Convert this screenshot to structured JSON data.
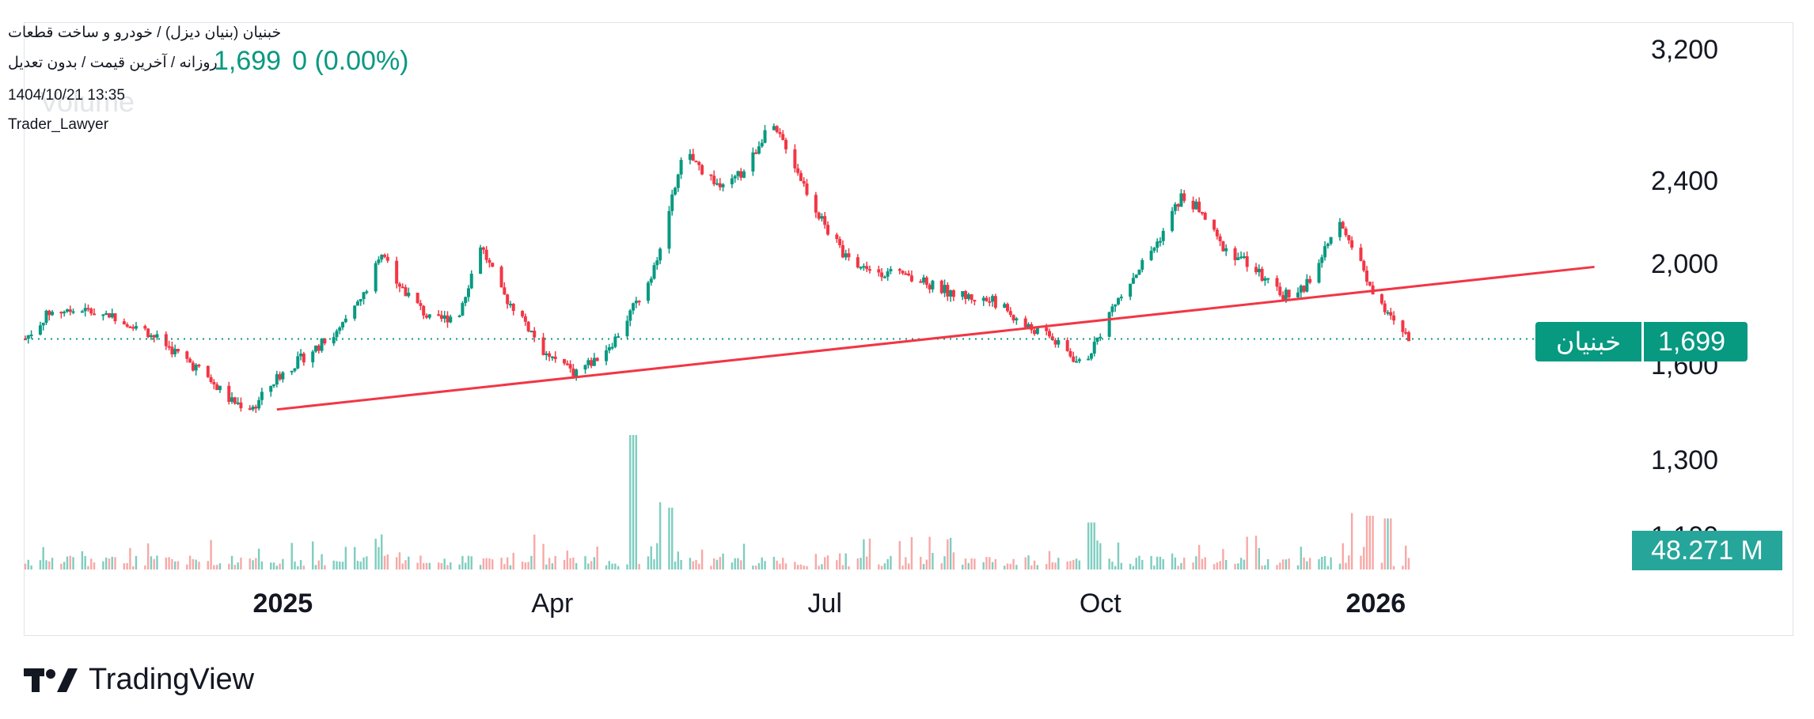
{
  "header": {
    "title": "خبنیان (بنیان دیزل) / خودرو و ساخت قطعات",
    "timeframe": "روزانه / آخرین قیمت / بدون تعدیل",
    "price": "1,699",
    "change": "0 (0.00%)",
    "date": "1404/10/21 13:35",
    "author": "Trader_Lawyer",
    "volume_label": "Volume"
  },
  "price_label": {
    "symbol": "خبنیان",
    "value": "1,699"
  },
  "volume_label": {
    "value": "48.271 M"
  },
  "brand": {
    "name": "TradingView"
  },
  "colors": {
    "up": "#089981",
    "down": "#f23645",
    "vol_up": "#7fcdc0",
    "vol_down": "#f7a9a7",
    "trendline": "#f23645"
  },
  "chart_data": {
    "type": "candlestick",
    "scale": "log",
    "ylim": [
      1100,
      3250
    ],
    "yticks": [
      "3,200",
      "2,400",
      "2,000",
      "1,600",
      "1,300",
      "1,100"
    ],
    "xticks": [
      {
        "label": "2025",
        "date": "2025-01-01",
        "bold": true
      },
      {
        "label": "Apr",
        "date": "2025-04-01",
        "bold": false
      },
      {
        "label": "Jul",
        "date": "2025-07-01",
        "bold": false
      },
      {
        "label": "Oct",
        "date": "2025-10-01",
        "bold": false
      },
      {
        "label": "2026",
        "date": "2026-01-01",
        "bold": true
      }
    ],
    "last_price": 1699,
    "last_volume": "48.271 M",
    "price_path": [
      [
        "2024-10-07",
        1700
      ],
      [
        "2024-10-15",
        1800
      ],
      [
        "2024-10-25",
        1810
      ],
      [
        "2024-11-05",
        1790
      ],
      [
        "2024-11-15",
        1740
      ],
      [
        "2024-11-25",
        1660
      ],
      [
        "2024-12-05",
        1580
      ],
      [
        "2024-12-15",
        1480
      ],
      [
        "2024-12-22",
        1460
      ],
      [
        "2024-12-30",
        1560
      ],
      [
        "2025-01-10",
        1650
      ],
      [
        "2025-01-20",
        1730
      ],
      [
        "2025-01-28",
        1870
      ],
      [
        "2025-02-03",
        2050
      ],
      [
        "2025-02-10",
        1900
      ],
      [
        "2025-02-20",
        1760
      ],
      [
        "2025-03-01",
        1800
      ],
      [
        "2025-03-08",
        2090
      ],
      [
        "2025-03-15",
        1880
      ],
      [
        "2025-03-22",
        1780
      ],
      [
        "2025-03-30",
        1640
      ],
      [
        "2025-04-08",
        1580
      ],
      [
        "2025-04-15",
        1620
      ],
      [
        "2025-04-22",
        1700
      ],
      [
        "2025-04-30",
        1860
      ],
      [
        "2025-05-05",
        1990
      ],
      [
        "2025-05-10",
        2250
      ],
      [
        "2025-05-15",
        2560
      ],
      [
        "2025-05-20",
        2480
      ],
      [
        "2025-05-28",
        2360
      ],
      [
        "2025-06-05",
        2470
      ],
      [
        "2025-06-12",
        2720
      ],
      [
        "2025-06-18",
        2600
      ],
      [
        "2025-06-25",
        2350
      ],
      [
        "2025-07-02",
        2150
      ],
      [
        "2025-07-10",
        2000
      ],
      [
        "2025-07-20",
        1970
      ],
      [
        "2025-08-01",
        1930
      ],
      [
        "2025-08-15",
        1870
      ],
      [
        "2025-08-28",
        1840
      ],
      [
        "2025-09-05",
        1750
      ],
      [
        "2025-09-12",
        1720
      ],
      [
        "2025-09-20",
        1650
      ],
      [
        "2025-09-25",
        1600
      ],
      [
        "2025-09-30",
        1700
      ],
      [
        "2025-10-05",
        1820
      ],
      [
        "2025-10-12",
        1950
      ],
      [
        "2025-10-20",
        2100
      ],
      [
        "2025-10-28",
        2320
      ],
      [
        "2025-11-03",
        2260
      ],
      [
        "2025-11-10",
        2090
      ],
      [
        "2025-11-20",
        2000
      ],
      [
        "2025-11-30",
        1870
      ],
      [
        "2025-12-08",
        1900
      ],
      [
        "2025-12-15",
        2060
      ],
      [
        "2025-12-20",
        2180
      ],
      [
        "2025-12-27",
        2000
      ],
      [
        "2026-01-02",
        1830
      ],
      [
        "2026-01-07",
        1760
      ],
      [
        "2026-01-12",
        1699
      ]
    ],
    "trendline": {
      "start": [
        "2024-12-30",
        1455
      ],
      "end": [
        "2026-03-15",
        1990
      ]
    },
    "volume_spikes": [
      [
        "2025-04-28",
        100
      ],
      [
        "2025-05-08",
        50
      ],
      [
        "2025-05-10",
        46
      ],
      [
        "2025-09-28",
        35
      ],
      [
        "2025-12-25",
        42
      ],
      [
        "2025-12-30",
        40
      ],
      [
        "2026-01-05",
        38
      ]
    ]
  }
}
